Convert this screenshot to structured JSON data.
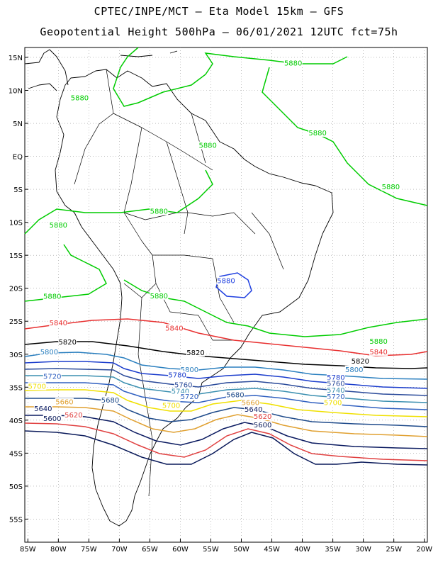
{
  "header": {
    "line1": "CPTEC/INPE/MCT –  Eta Model 15km – GFS",
    "line2": "Geopotential Height 500hPa – 06/01/2021 12UTC fct=75h"
  },
  "axes": {
    "lat_labels": [
      "15N",
      "10N",
      "5N",
      "EQ",
      "5S",
      "10S",
      "15S",
      "20S",
      "25S",
      "30S",
      "35S",
      "40S",
      "45S",
      "50S",
      "55S"
    ],
    "lat_values": [
      15,
      10,
      5,
      0,
      -5,
      -10,
      -15,
      -20,
      -25,
      -30,
      -35,
      -40,
      -45,
      -50,
      -55
    ],
    "lon_labels": [
      "85W",
      "80W",
      "75W",
      "70W",
      "65W",
      "60W",
      "55W",
      "50W",
      "45W",
      "40W",
      "35W",
      "30W",
      "25W",
      "20W"
    ],
    "lon_values": [
      -85,
      -80,
      -75,
      -70,
      -65,
      -60,
      -55,
      -50,
      -45,
      -40,
      -35,
      -30,
      -25,
      -20
    ],
    "lon_range": [
      -85.5,
      -19.5
    ],
    "lat_range": [
      -58.5,
      16.5
    ],
    "grid": true
  },
  "contours": [
    {
      "level": "5880",
      "color": "#00cc00"
    },
    {
      "level": "5840",
      "color": "#e83030"
    },
    {
      "level": "5820",
      "color": "#000000"
    },
    {
      "level": "5800",
      "color": "#2a7fbf"
    },
    {
      "level": "5780",
      "color": "#1a3ccc"
    },
    {
      "level": "5760",
      "color": "#2a4a9a"
    },
    {
      "level": "5740",
      "color": "#3a8fb0"
    },
    {
      "level": "5720",
      "color": "#3060c0"
    },
    {
      "level": "5700",
      "color": "#f0e000"
    },
    {
      "level": "5680",
      "color": "#1e4a8a"
    },
    {
      "level": "5660",
      "color": "#e0a030"
    },
    {
      "level": "5640",
      "color": "#0a1a60"
    },
    {
      "level": "5620",
      "color": "#e04040"
    },
    {
      "level": "5600",
      "color": "#0a1a5a"
    }
  ],
  "labels": [
    {
      "text": "5880",
      "color": "#00cc00",
      "lon": -41.5,
      "lat": 14
    },
    {
      "text": "5880",
      "color": "#00cc00",
      "lon": -76.5,
      "lat": 8.7
    },
    {
      "text": "5880",
      "color": "#00cc00",
      "lon": -37.5,
      "lat": 3.4
    },
    {
      "text": "5880",
      "color": "#00cc00",
      "lon": -55.5,
      "lat": 1.5
    },
    {
      "text": "5880",
      "color": "#00cc00",
      "lon": -25.5,
      "lat": -4.8
    },
    {
      "text": "5880",
      "color": "#00cc00",
      "lon": -63.5,
      "lat": -8.5
    },
    {
      "text": "5880",
      "color": "#00cc00",
      "lon": -80.0,
      "lat": -10.6
    },
    {
      "text": "5880",
      "color": "#2040e0",
      "lon": -52.5,
      "lat": -19.0
    },
    {
      "text": "5880",
      "color": "#00cc00",
      "lon": -81.0,
      "lat": -21.4
    },
    {
      "text": "5880",
      "color": "#00cc00",
      "lon": -63.5,
      "lat": -21.3
    },
    {
      "text": "5880",
      "color": "#00cc00",
      "lon": -27.5,
      "lat": -28.2
    },
    {
      "text": "5840",
      "color": "#e83030",
      "lon": -80.0,
      "lat": -25.4
    },
    {
      "text": "5840",
      "color": "#e83030",
      "lon": -61.0,
      "lat": -26.2
    },
    {
      "text": "5840",
      "color": "#e83030",
      "lon": -27.5,
      "lat": -29.8
    },
    {
      "text": "5820",
      "color": "#000000",
      "lon": -78.5,
      "lat": -28.3
    },
    {
      "text": "5820",
      "color": "#000000",
      "lon": -57.5,
      "lat": -29.9
    },
    {
      "text": "5820",
      "color": "#000000",
      "lon": -30.5,
      "lat": -31.2
    },
    {
      "text": "5800",
      "color": "#2a7fbf",
      "lon": -81.5,
      "lat": -29.8
    },
    {
      "text": "5800",
      "color": "#2a7fbf",
      "lon": -58.5,
      "lat": -32.5
    },
    {
      "text": "5800",
      "color": "#2a7fbf",
      "lon": -31.5,
      "lat": -32.5
    },
    {
      "text": "5780",
      "color": "#1a3ccc",
      "lon": -60.5,
      "lat": -33.3
    },
    {
      "text": "5780",
      "color": "#1a3ccc",
      "lon": -34.5,
      "lat": -33.7
    },
    {
      "text": "5760",
      "color": "#2a4a9a",
      "lon": -59.5,
      "lat": -34.8
    },
    {
      "text": "5760",
      "color": "#2a4a9a",
      "lon": -34.5,
      "lat": -34.6
    },
    {
      "text": "5740",
      "color": "#3a8fb0",
      "lon": -60.0,
      "lat": -35.8
    },
    {
      "text": "5740",
      "color": "#3a8fb0",
      "lon": -34.5,
      "lat": -35.6
    },
    {
      "text": "5720",
      "color": "#3060c0",
      "lon": -81.0,
      "lat": -33.5
    },
    {
      "text": "5720",
      "color": "#3060c0",
      "lon": -58.5,
      "lat": -36.6
    },
    {
      "text": "5720",
      "color": "#3060c0",
      "lon": -34.5,
      "lat": -36.6
    },
    {
      "text": "5700",
      "color": "#f0e000",
      "lon": -83.5,
      "lat": -35.0
    },
    {
      "text": "5700",
      "color": "#f0e000",
      "lon": -61.5,
      "lat": -37.9
    },
    {
      "text": "5700",
      "color": "#f0e000",
      "lon": -35.0,
      "lat": -37.5
    },
    {
      "text": "5680",
      "color": "#1e4a8a",
      "lon": -71.5,
      "lat": -37.1
    },
    {
      "text": "5680",
      "color": "#1e4a8a",
      "lon": -51.0,
      "lat": -36.3
    },
    {
      "text": "5660",
      "color": "#e0a030",
      "lon": -79.0,
      "lat": -37.4
    },
    {
      "text": "5660",
      "color": "#e0a030",
      "lon": -48.5,
      "lat": -37.5
    },
    {
      "text": "5640",
      "color": "#0a1a60",
      "lon": -82.5,
      "lat": -38.4
    },
    {
      "text": "5640",
      "color": "#0a1a60",
      "lon": -48.0,
      "lat": -38.5
    },
    {
      "text": "5620",
      "color": "#e04040",
      "lon": -77.5,
      "lat": -39.4
    },
    {
      "text": "5620",
      "color": "#e04040",
      "lon": -46.5,
      "lat": -39.6
    },
    {
      "text": "5600",
      "color": "#0a1a5a",
      "lon": -81.0,
      "lat": -39.9
    },
    {
      "text": "5600",
      "color": "#0a1a5a",
      "lon": -46.5,
      "lat": -40.9
    }
  ]
}
